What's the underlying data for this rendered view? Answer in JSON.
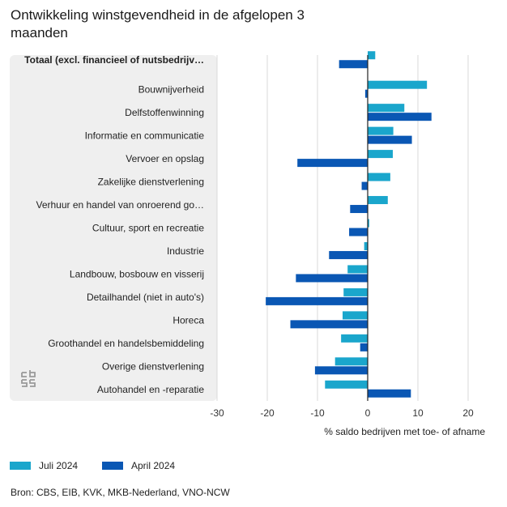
{
  "title": "Ontwikkeling winstgevendheid in de afgelopen 3 maanden",
  "source": "Bron: CBS, EIB, KVK, MKB-Nederland, VNO-NCW",
  "legend": {
    "juli": "Juli 2024",
    "april": "April 2024"
  },
  "colors": {
    "juli": "#1aa6cc",
    "april": "#0a57b4",
    "grid": "#d9d9d9",
    "zero": "#222222",
    "panel": "#efefef"
  },
  "chart_data": {
    "type": "bar",
    "orientation": "horizontal",
    "title": "Ontwikkeling winstgevendheid in de afgelopen 3 maanden",
    "xlabel": "% saldo bedrijven met toe- of afname",
    "ylabel": "",
    "xlim": [
      -30,
      20
    ],
    "xticks": [
      -30,
      -20,
      -10,
      0,
      10,
      20
    ],
    "grid": true,
    "legend_position": "bottom-left",
    "categories": [
      "Totaal (excl. financieel of nutsbedrijv…",
      "Bouwnijverheid",
      "Delfstoffenwinning",
      "Informatie en communicatie",
      "Vervoer en opslag",
      "Zakelijke dienstverlening",
      "Verhuur en handel van onroerend go…",
      "Cultuur, sport en recreatie",
      "Industrie",
      "Landbouw, bosbouw en visserij",
      "Detailhandel (niet in auto's)",
      "Horeca",
      "Groothandel en handelsbemiddeling",
      "Overige dienstverlening",
      "Autohandel en -reparatie"
    ],
    "series": [
      {
        "name": "Juli 2024",
        "values": [
          1.5,
          11.8,
          7.3,
          5.1,
          5.0,
          4.5,
          4.0,
          0.3,
          -0.7,
          -4.0,
          -4.8,
          -5.0,
          -5.3,
          -6.5,
          -8.5
        ]
      },
      {
        "name": "April 2024",
        "values": [
          -5.7,
          -0.5,
          12.7,
          8.8,
          -14.0,
          -1.2,
          -3.5,
          -3.7,
          -7.7,
          -14.3,
          -20.3,
          -15.4,
          -1.5,
          -10.5,
          8.6
        ]
      }
    ]
  }
}
